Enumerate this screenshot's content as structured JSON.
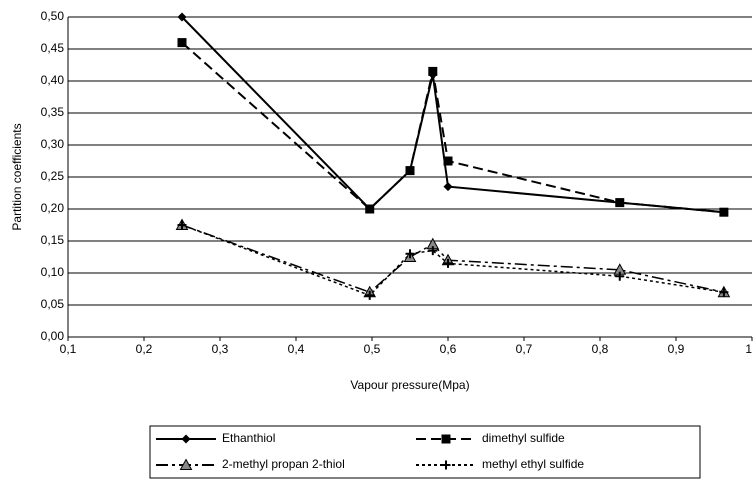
{
  "chart_data": {
    "type": "line",
    "x_label": "Vapour pressure(Mpa)",
    "y_label": "Partition coefficients",
    "x": [
      0.25,
      0.497,
      0.55,
      0.58,
      0.6,
      0.826,
      0.963
    ],
    "series": [
      {
        "name": "Ethanthiol",
        "color": "#000000",
        "marker": "diamond",
        "dash": "none",
        "values": [
          0.5,
          0.2,
          0.26,
          0.41,
          0.235,
          0.21,
          0.195
        ]
      },
      {
        "name": "dimethyl sulfide",
        "color": "#000000",
        "marker": "square",
        "dash": "10 5",
        "values": [
          0.46,
          0.2,
          0.26,
          0.415,
          0.275,
          0.21,
          0.195
        ]
      },
      {
        "name": "2-methyl propan 2-thiol",
        "color": "#000000",
        "marker": "triangle",
        "dash": "12 4 3 4",
        "values": [
          0.175,
          0.07,
          0.125,
          0.145,
          0.12,
          0.105,
          0.07
        ]
      },
      {
        "name": "methyl ethyl sulfide",
        "color": "#000000",
        "marker": "plus",
        "dash": "3 3",
        "values": [
          0.175,
          0.065,
          0.13,
          0.135,
          0.115,
          0.095,
          0.07
        ]
      }
    ],
    "xlim": [
      0.1,
      1
    ],
    "xticks": [
      {
        "value": 0.1,
        "label": "0,1"
      },
      {
        "value": 0.2,
        "label": "0,2"
      },
      {
        "value": 0.3,
        "label": "0,3"
      },
      {
        "value": 0.4,
        "label": "0,4"
      },
      {
        "value": 0.5,
        "label": "0,5"
      },
      {
        "value": 0.6,
        "label": "0,6"
      },
      {
        "value": 0.7,
        "label": "0,7"
      },
      {
        "value": 0.8,
        "label": "0,8"
      },
      {
        "value": 0.9,
        "label": "0,9"
      },
      1
    ],
    "ylim": [
      0,
      0.5
    ],
    "yticks": [
      {
        "value": 0,
        "label": "0,00"
      },
      {
        "value": 0.05,
        "label": "0,05"
      },
      {
        "value": 0.1,
        "label": "0,10"
      },
      {
        "value": 0.15,
        "label": "0,15"
      },
      {
        "value": 0.2,
        "label": "0,20"
      },
      {
        "value": 0.25,
        "label": "0,25"
      },
      {
        "value": 0.3,
        "label": "0,30"
      },
      {
        "value": 0.35,
        "label": "0,35"
      },
      {
        "value": 0.4,
        "label": "0,40"
      },
      {
        "value": 0.45,
        "label": "0,45"
      },
      {
        "value": 0.5,
        "label": "0,50"
      }
    ],
    "grid": true,
    "legend": "bottom"
  }
}
